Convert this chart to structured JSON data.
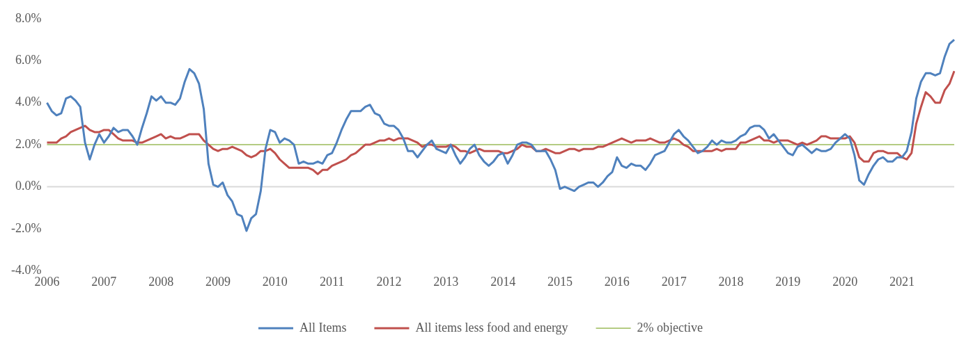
{
  "chart_data": {
    "type": "line",
    "categories": [
      "2006",
      null,
      null,
      null,
      null,
      null,
      null,
      null,
      null,
      null,
      null,
      null,
      "2007",
      null,
      null,
      null,
      null,
      null,
      null,
      null,
      null,
      null,
      null,
      null,
      "2008",
      null,
      null,
      null,
      null,
      null,
      null,
      null,
      null,
      null,
      null,
      null,
      "2009",
      null,
      null,
      null,
      null,
      null,
      null,
      null,
      null,
      null,
      null,
      null,
      "2010",
      null,
      null,
      null,
      null,
      null,
      null,
      null,
      null,
      null,
      null,
      null,
      "2011",
      null,
      null,
      null,
      null,
      null,
      null,
      null,
      null,
      null,
      null,
      null,
      "2012",
      null,
      null,
      null,
      null,
      null,
      null,
      null,
      null,
      null,
      null,
      null,
      "2013",
      null,
      null,
      null,
      null,
      null,
      null,
      null,
      null,
      null,
      null,
      null,
      "2014",
      null,
      null,
      null,
      null,
      null,
      null,
      null,
      null,
      null,
      null,
      null,
      "2015",
      null,
      null,
      null,
      null,
      null,
      null,
      null,
      null,
      null,
      null,
      null,
      "2016",
      null,
      null,
      null,
      null,
      null,
      null,
      null,
      null,
      null,
      null,
      null,
      "2017",
      null,
      null,
      null,
      null,
      null,
      null,
      null,
      null,
      null,
      null,
      null,
      "2018",
      null,
      null,
      null,
      null,
      null,
      null,
      null,
      null,
      null,
      null,
      null,
      "2019",
      null,
      null,
      null,
      null,
      null,
      null,
      null,
      null,
      null,
      null,
      null,
      "2020",
      null,
      null,
      null,
      null,
      null,
      null,
      null,
      null,
      null,
      null,
      null,
      "2021",
      null,
      null,
      null,
      null,
      null,
      null,
      null,
      null,
      null,
      null,
      null
    ],
    "series": [
      {
        "name": "All Items",
        "color": "#4f81bd",
        "values": [
          4.0,
          3.6,
          3.4,
          3.5,
          4.2,
          4.3,
          4.1,
          3.8,
          2.1,
          1.3,
          2.0,
          2.5,
          2.1,
          2.4,
          2.8,
          2.6,
          2.7,
          2.7,
          2.4,
          2.0,
          2.8,
          3.5,
          4.3,
          4.1,
          4.3,
          4.0,
          4.0,
          3.9,
          4.2,
          5.0,
          5.6,
          5.4,
          4.9,
          3.7,
          1.1,
          0.1,
          0.0,
          0.2,
          -0.4,
          -0.7,
          -1.3,
          -1.4,
          -2.1,
          -1.5,
          -1.3,
          -0.2,
          1.8,
          2.7,
          2.6,
          2.1,
          2.3,
          2.2,
          2.0,
          1.1,
          1.2,
          1.1,
          1.1,
          1.2,
          1.1,
          1.5,
          1.6,
          2.1,
          2.7,
          3.2,
          3.6,
          3.6,
          3.6,
          3.8,
          3.9,
          3.5,
          3.4,
          3.0,
          2.9,
          2.9,
          2.7,
          2.3,
          1.7,
          1.7,
          1.4,
          1.7,
          2.0,
          2.2,
          1.8,
          1.7,
          1.6,
          2.0,
          1.5,
          1.1,
          1.4,
          1.8,
          2.0,
          1.5,
          1.2,
          1.0,
          1.2,
          1.5,
          1.6,
          1.1,
          1.5,
          2.0,
          2.1,
          2.1,
          2.0,
          1.7,
          1.7,
          1.7,
          1.3,
          0.8,
          -0.1,
          0.0,
          -0.1,
          -0.2,
          0.0,
          0.1,
          0.2,
          0.2,
          0.0,
          0.2,
          0.5,
          0.7,
          1.4,
          1.0,
          0.9,
          1.1,
          1.0,
          1.0,
          0.8,
          1.1,
          1.5,
          1.6,
          1.7,
          2.1,
          2.5,
          2.7,
          2.4,
          2.2,
          1.9,
          1.6,
          1.7,
          1.9,
          2.2,
          2.0,
          2.2,
          2.1,
          2.1,
          2.2,
          2.4,
          2.5,
          2.8,
          2.9,
          2.9,
          2.7,
          2.3,
          2.5,
          2.2,
          1.9,
          1.6,
          1.5,
          1.9,
          2.0,
          1.8,
          1.6,
          1.8,
          1.7,
          1.7,
          1.8,
          2.1,
          2.3,
          2.5,
          2.3,
          1.5,
          0.3,
          0.1,
          0.6,
          1.0,
          1.3,
          1.4,
          1.2,
          1.2,
          1.4,
          1.4,
          1.7,
          2.6,
          4.2,
          5.0,
          5.4,
          5.4,
          5.3,
          5.4,
          6.2,
          6.8,
          7.0
        ]
      },
      {
        "name": "All items less food and energy",
        "color": "#c0504d",
        "values": [
          2.1,
          2.1,
          2.1,
          2.3,
          2.4,
          2.6,
          2.7,
          2.8,
          2.9,
          2.7,
          2.6,
          2.6,
          2.7,
          2.7,
          2.5,
          2.3,
          2.2,
          2.2,
          2.2,
          2.1,
          2.1,
          2.2,
          2.3,
          2.4,
          2.5,
          2.3,
          2.4,
          2.3,
          2.3,
          2.4,
          2.5,
          2.5,
          2.5,
          2.2,
          2.0,
          1.8,
          1.7,
          1.8,
          1.8,
          1.9,
          1.8,
          1.7,
          1.5,
          1.4,
          1.5,
          1.7,
          1.7,
          1.8,
          1.6,
          1.3,
          1.1,
          0.9,
          0.9,
          0.9,
          0.9,
          0.9,
          0.8,
          0.6,
          0.8,
          0.8,
          1.0,
          1.1,
          1.2,
          1.3,
          1.5,
          1.6,
          1.8,
          2.0,
          2.0,
          2.1,
          2.2,
          2.2,
          2.3,
          2.2,
          2.3,
          2.3,
          2.3,
          2.2,
          2.1,
          1.9,
          2.0,
          2.0,
          1.9,
          1.9,
          1.9,
          2.0,
          1.9,
          1.7,
          1.7,
          1.6,
          1.7,
          1.8,
          1.7,
          1.7,
          1.7,
          1.7,
          1.6,
          1.6,
          1.7,
          1.8,
          2.0,
          1.9,
          1.9,
          1.7,
          1.7,
          1.8,
          1.7,
          1.6,
          1.6,
          1.7,
          1.8,
          1.8,
          1.7,
          1.8,
          1.8,
          1.8,
          1.9,
          1.9,
          2.0,
          2.1,
          2.2,
          2.3,
          2.2,
          2.1,
          2.2,
          2.2,
          2.2,
          2.3,
          2.2,
          2.1,
          2.1,
          2.2,
          2.3,
          2.2,
          2.0,
          1.9,
          1.7,
          1.7,
          1.7,
          1.7,
          1.7,
          1.8,
          1.7,
          1.8,
          1.8,
          1.8,
          2.1,
          2.1,
          2.2,
          2.3,
          2.4,
          2.2,
          2.2,
          2.1,
          2.2,
          2.2,
          2.2,
          2.1,
          2.0,
          2.1,
          2.0,
          2.1,
          2.2,
          2.4,
          2.4,
          2.3,
          2.3,
          2.3,
          2.3,
          2.4,
          2.1,
          1.4,
          1.2,
          1.2,
          1.6,
          1.7,
          1.7,
          1.6,
          1.6,
          1.6,
          1.4,
          1.3,
          1.6,
          3.0,
          3.8,
          4.5,
          4.3,
          4.0,
          4.0,
          4.6,
          4.9,
          5.5
        ]
      },
      {
        "name": "2% objective",
        "color": "#9bbb59",
        "values": [
          2,
          2,
          2,
          2,
          2,
          2,
          2,
          2,
          2,
          2,
          2,
          2,
          2,
          2,
          2,
          2,
          2,
          2,
          2,
          2,
          2,
          2,
          2,
          2,
          2,
          2,
          2,
          2,
          2,
          2,
          2,
          2,
          2,
          2,
          2,
          2,
          2,
          2,
          2,
          2,
          2,
          2,
          2,
          2,
          2,
          2,
          2,
          2,
          2,
          2,
          2,
          2,
          2,
          2,
          2,
          2,
          2,
          2,
          2,
          2,
          2,
          2,
          2,
          2,
          2,
          2,
          2,
          2,
          2,
          2,
          2,
          2,
          2,
          2,
          2,
          2,
          2,
          2,
          2,
          2,
          2,
          2,
          2,
          2,
          2,
          2,
          2,
          2,
          2,
          2,
          2,
          2,
          2,
          2,
          2,
          2,
          2,
          2,
          2,
          2,
          2,
          2,
          2,
          2,
          2,
          2,
          2,
          2,
          2,
          2,
          2,
          2,
          2,
          2,
          2,
          2,
          2,
          2,
          2,
          2,
          2,
          2,
          2,
          2,
          2,
          2,
          2,
          2,
          2,
          2,
          2,
          2,
          2,
          2,
          2,
          2,
          2,
          2,
          2,
          2,
          2,
          2,
          2,
          2,
          2,
          2,
          2,
          2,
          2,
          2,
          2,
          2,
          2,
          2,
          2,
          2,
          2,
          2,
          2,
          2,
          2,
          2,
          2,
          2,
          2,
          2,
          2,
          2,
          2,
          2,
          2,
          2,
          2,
          2,
          2,
          2,
          2,
          2,
          2,
          2,
          2,
          2,
          2,
          2,
          2,
          2,
          2,
          2,
          2,
          2,
          2,
          2
        ]
      }
    ],
    "ylim": [
      -4,
      8
    ],
    "yticks": [
      {
        "value": -4,
        "label": "-4.0%"
      },
      {
        "value": -2,
        "label": "-2.0%"
      },
      {
        "value": 0,
        "label": "0.0%"
      },
      {
        "value": 2,
        "label": "2.0%"
      },
      {
        "value": 4,
        "label": "4.0%"
      },
      {
        "value": 6,
        "label": "6.0%"
      },
      {
        "value": 8,
        "label": "8.0%"
      }
    ],
    "ref_lines": [
      {
        "axis": "y",
        "value": 0,
        "color": "#d9d9d9"
      }
    ],
    "legend": "bottom"
  }
}
